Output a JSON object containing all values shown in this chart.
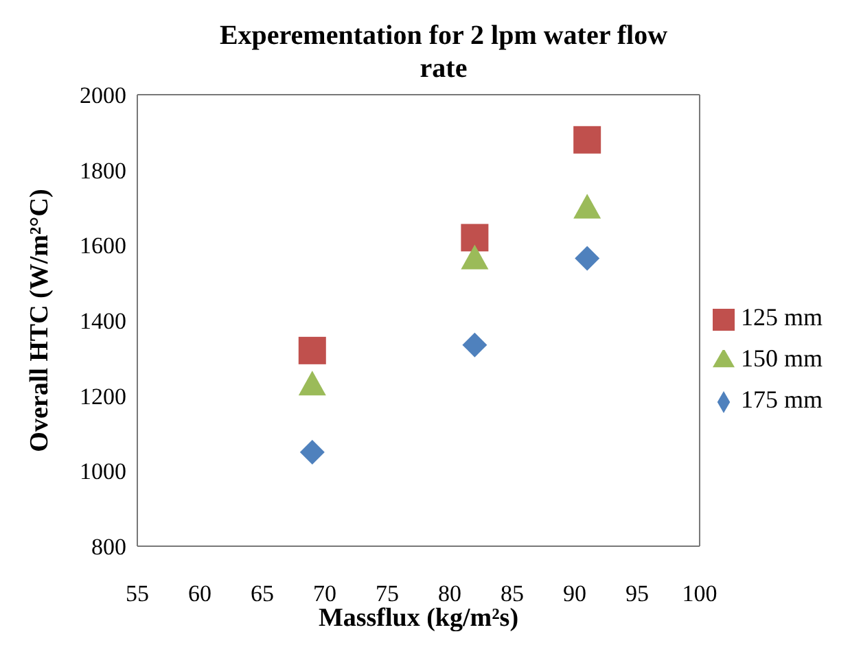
{
  "chart_data": {
    "type": "scatter",
    "title": "Experementation  for  2 lpm water flow rate",
    "xlabel": "Massflux (kg/m²s)",
    "ylabel": "Overall HTC  (W/m²°C)",
    "x": [
      69,
      82,
      91
    ],
    "series": [
      {
        "name": "125 mm",
        "color": "#c0504d",
        "marker": "square",
        "values": [
          1320,
          1620,
          1880
        ]
      },
      {
        "name": "150 mm",
        "color": "#9bbb59",
        "marker": "triangle",
        "values": [
          1230,
          1565,
          1700
        ]
      },
      {
        "name": "175 mm",
        "color": "#4f81bd",
        "marker": "diamond",
        "values": [
          1050,
          1335,
          1565
        ]
      }
    ],
    "xlim": [
      55,
      100
    ],
    "xticks": [
      55,
      60,
      65,
      70,
      75,
      80,
      85,
      90,
      95,
      100
    ],
    "ylim": [
      800,
      2000
    ],
    "yticks": [
      800,
      1000,
      1200,
      1400,
      1600,
      1800,
      2000
    ],
    "grid": false,
    "legend": "right"
  }
}
